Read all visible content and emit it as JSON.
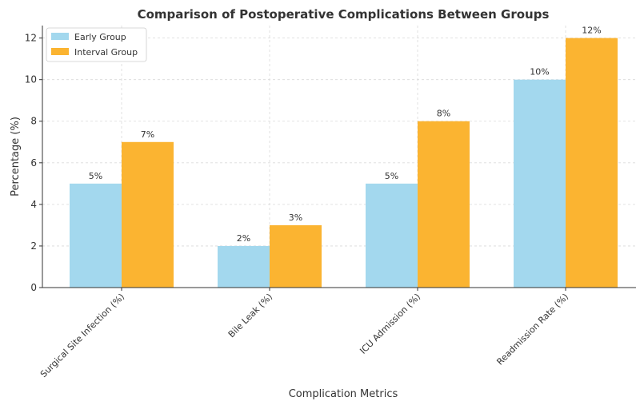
{
  "chart_data": {
    "type": "bar",
    "title": "Comparison of Postoperative Complications Between Groups",
    "xlabel": "Complication Metrics",
    "ylabel": "Percentage (%)",
    "categories": [
      "Surgical Site Infection (%)",
      "Bile Leak (%)",
      "ICU Admission (%)",
      "Readmission Rate (%)"
    ],
    "series": [
      {
        "name": "Early Group",
        "values": [
          5,
          2,
          5,
          10
        ],
        "labels": [
          "5%",
          "2%",
          "5%",
          "10%"
        ],
        "color": "#a3d8ee"
      },
      {
        "name": "Interval Group",
        "values": [
          7,
          3,
          8,
          12
        ],
        "labels": [
          "7%",
          "3%",
          "8%",
          "12%"
        ],
        "color": "#fbb431"
      }
    ],
    "ylim": [
      0,
      12.6
    ],
    "yticks": [
      0,
      2,
      4,
      6,
      8,
      10,
      12
    ],
    "grid": true,
    "legend": "top-left"
  }
}
